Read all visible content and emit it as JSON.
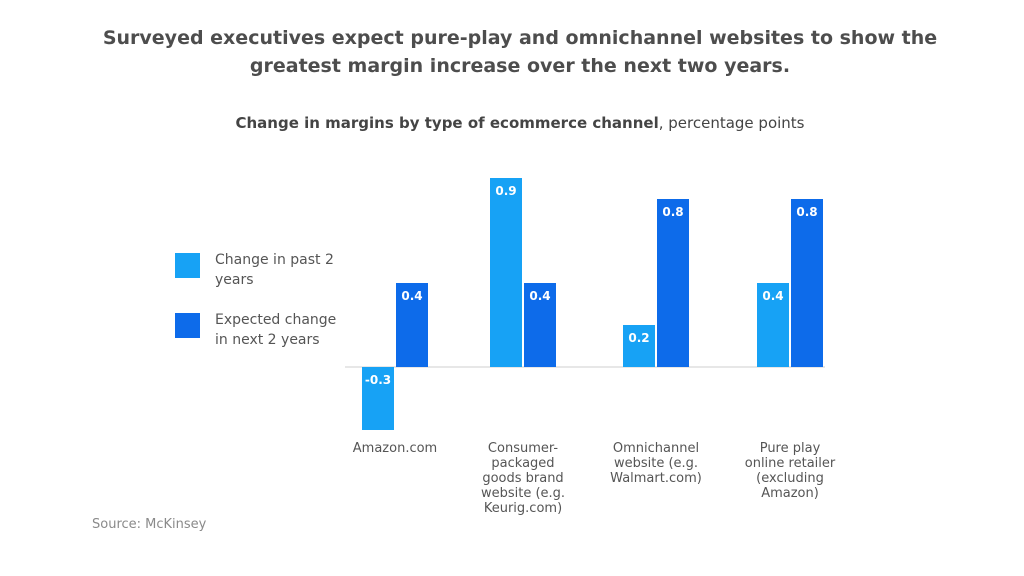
{
  "title": "Surveyed executives expect pure-play and omnichannel websites to show the greatest margin increase over the next two years.",
  "subtitle": {
    "bold": "Change in margins by type of ecommerce channel",
    "rest": ", percentage points"
  },
  "source": "Source: McKinsey",
  "colors": {
    "past": "#17a2f5",
    "next": "#0d6bea"
  },
  "legend": [
    {
      "label": "Change in past 2 years",
      "color_key": "past"
    },
    {
      "label": "Expected change in next 2 years",
      "color_key": "next"
    }
  ],
  "chart_data": {
    "type": "bar",
    "title": "Change in margins by type of ecommerce channel, percentage points",
    "categories": [
      "Amazon.com",
      "Consumer-packaged goods brand website (e.g. Keurig.com)",
      "Omnichannel website (e.g. Walmart.com)",
      "Pure play online retailer (excluding Amazon)"
    ],
    "series": [
      {
        "name": "Change in past 2 years",
        "values": [
          -0.3,
          0.9,
          0.2,
          0.4
        ]
      },
      {
        "name": "Expected change in next 2 years",
        "values": [
          0.4,
          0.4,
          0.8,
          0.8
        ]
      }
    ],
    "value_labels": [
      [
        "-0.3",
        "0.9",
        "0.2",
        "0.4"
      ],
      [
        "0.4",
        "0.4",
        "0.8",
        "0.8"
      ]
    ],
    "ylim": [
      -0.3,
      0.9
    ],
    "xlabel": "",
    "ylabel": "",
    "grid": false,
    "legend_position": "left"
  },
  "category_lines": [
    [
      "Amazon.com"
    ],
    [
      "Consumer-",
      "packaged",
      "goods brand",
      "website (e.g.",
      "Keurig.com)"
    ],
    [
      "Omnichannel",
      "website (e.g.",
      "Walmart.com)"
    ],
    [
      "Pure play",
      "online retailer",
      "(excluding",
      "Amazon)"
    ]
  ]
}
